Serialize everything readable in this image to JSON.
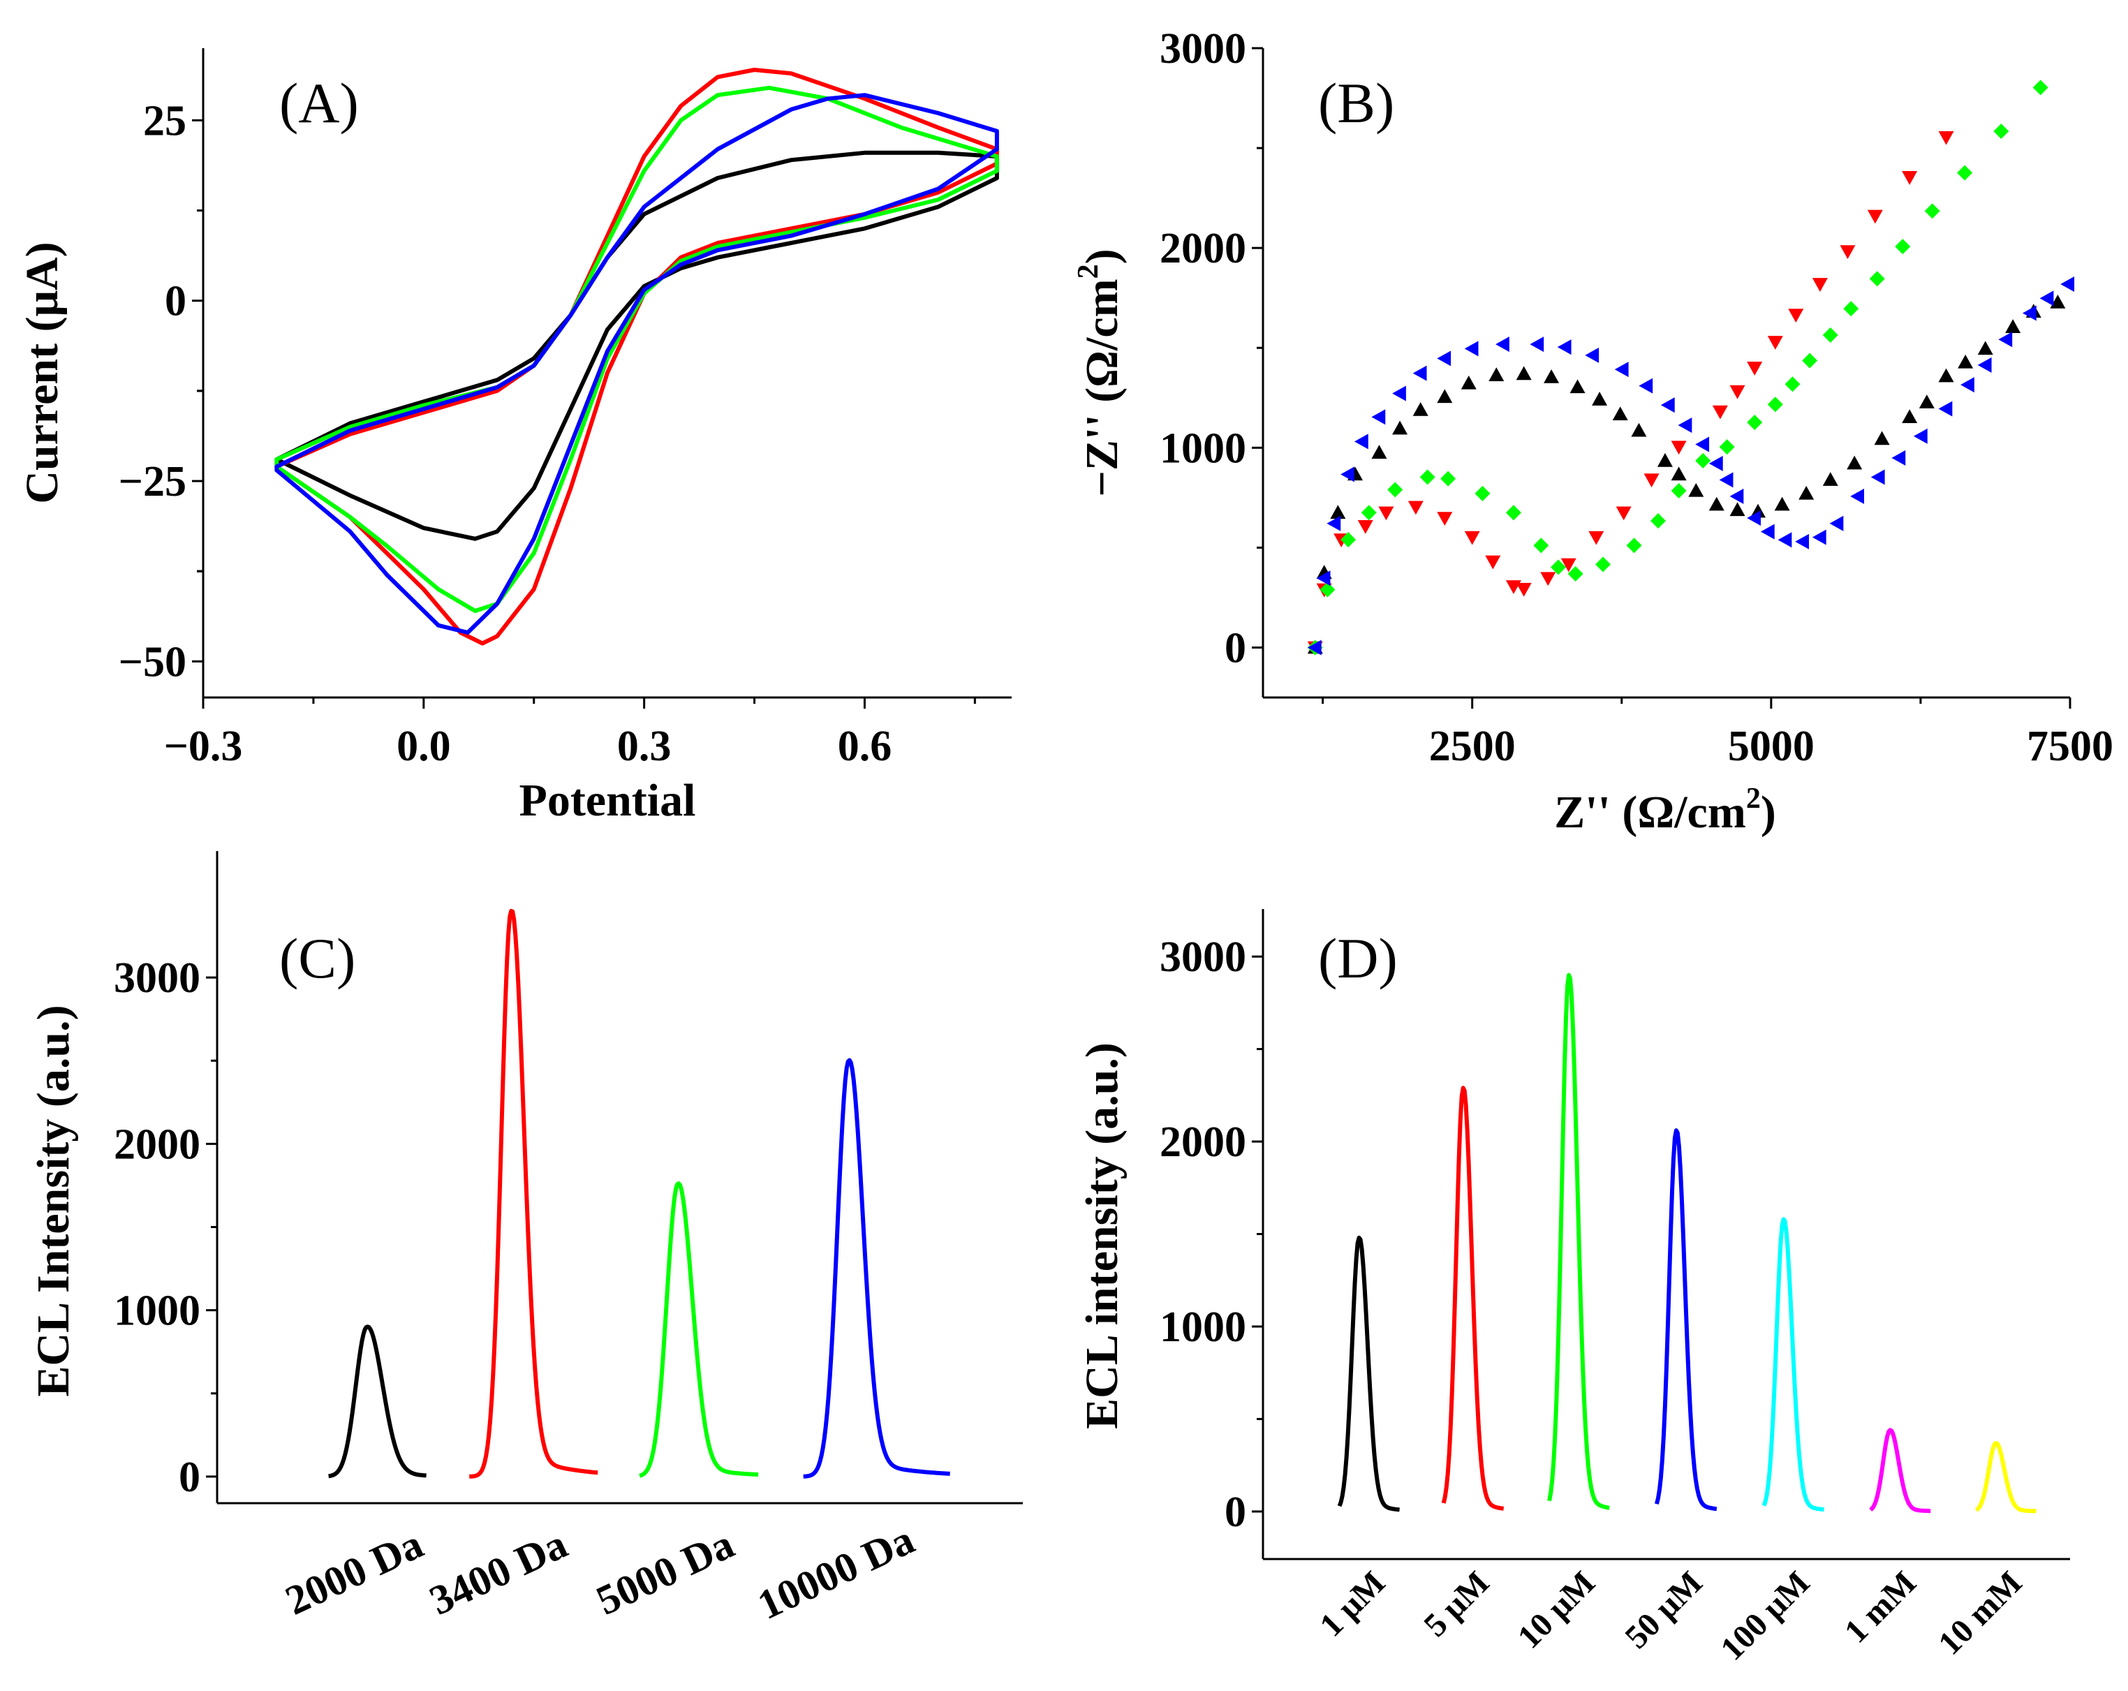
{
  "chart_data": [
    {
      "panel": "(A)",
      "type": "line",
      "xlabel": "Potential",
      "ylabel": "Current (μA)",
      "xlim": [
        -0.3,
        0.8
      ],
      "ylim": [
        -55,
        35
      ],
      "xticks": [
        -0.3,
        0.0,
        0.3,
        0.6
      ],
      "xtick_labels": [
        "−0.3",
        "0.0",
        "0.3",
        "0.6"
      ],
      "yticks": [
        25,
        0,
        -25,
        -50
      ],
      "ytick_labels": [
        "25",
        "0",
        "−25",
        "−50"
      ],
      "grid": false,
      "series": [
        {
          "name": "black",
          "color": "#000000",
          "x": [
            -0.2,
            -0.1,
            0,
            0.1,
            0.15,
            0.2,
            0.25,
            0.3,
            0.4,
            0.5,
            0.6,
            0.7,
            0.78,
            0.78,
            0.7,
            0.6,
            0.5,
            0.4,
            0.35,
            0.3,
            0.25,
            0.2,
            0.15,
            0.1,
            0.07,
            0,
            -0.1,
            -0.2
          ],
          "y": [
            -22,
            -17,
            -14,
            -11,
            -8,
            -2,
            6,
            12,
            17,
            19.5,
            20.5,
            20.5,
            20,
            17,
            13,
            10,
            8,
            6,
            4.5,
            2,
            -4,
            -15,
            -26,
            -32,
            -33,
            -31.5,
            -27,
            -22
          ]
        },
        {
          "name": "red",
          "color": "#ff0000",
          "x": [
            -0.2,
            -0.1,
            0,
            0.1,
            0.15,
            0.2,
            0.25,
            0.3,
            0.35,
            0.4,
            0.45,
            0.5,
            0.6,
            0.7,
            0.78,
            0.78,
            0.7,
            0.6,
            0.5,
            0.4,
            0.35,
            0.3,
            0.25,
            0.2,
            0.15,
            0.1,
            0.08,
            0.05,
            0,
            -0.1,
            -0.2
          ],
          "y": [
            -23,
            -18.5,
            -15.5,
            -12.5,
            -9,
            -2,
            9,
            20,
            27,
            31,
            32,
            31.5,
            28,
            24,
            21,
            19,
            15,
            12,
            10,
            8,
            6,
            1,
            -10,
            -26,
            -40,
            -46.5,
            -47.5,
            -46,
            -40,
            -30,
            -23
          ]
        },
        {
          "name": "green",
          "color": "#00ff00",
          "x": [
            -0.2,
            -0.1,
            0,
            0.1,
            0.15,
            0.2,
            0.25,
            0.3,
            0.35,
            0.4,
            0.47,
            0.55,
            0.65,
            0.78,
            0.78,
            0.7,
            0.6,
            0.5,
            0.4,
            0.35,
            0.3,
            0.25,
            0.2,
            0.15,
            0.1,
            0.07,
            0.02,
            -0.05,
            -0.1,
            -0.2
          ],
          "y": [
            -22,
            -17.5,
            -14.5,
            -12,
            -9,
            -2,
            8,
            18,
            25,
            28.5,
            29.5,
            28,
            24,
            20,
            18,
            14,
            11.5,
            9.5,
            7.5,
            5.5,
            1,
            -8,
            -22,
            -35,
            -42,
            -43,
            -40,
            -34,
            -30,
            -23
          ]
        },
        {
          "name": "blue",
          "color": "#0000ff",
          "x": [
            -0.2,
            -0.1,
            0,
            0.1,
            0.15,
            0.2,
            0.25,
            0.3,
            0.4,
            0.5,
            0.55,
            0.6,
            0.7,
            0.78,
            0.78,
            0.7,
            0.6,
            0.5,
            0.4,
            0.35,
            0.3,
            0.25,
            0.2,
            0.15,
            0.1,
            0.06,
            0.02,
            -0.05,
            -0.1,
            -0.2
          ],
          "y": [
            -23,
            -18,
            -15,
            -12,
            -9,
            -2,
            6,
            13,
            21,
            26.5,
            28,
            28.5,
            26,
            23.5,
            21,
            15.5,
            12,
            9,
            7,
            5,
            1.5,
            -7,
            -20,
            -33,
            -42,
            -46,
            -45,
            -38,
            -32,
            -23.5
          ]
        }
      ]
    },
    {
      "panel": "(B)",
      "type": "scatter",
      "xlabel": "Z'' (Ω/cm",
      "xlabel_sup": "2",
      "xlabel_end": ")",
      "ylabel": "−Z'' (Ω/cm",
      "ylabel_sup": "2",
      "ylabel_end": ")",
      "xlim": [
        750,
        7500
      ],
      "ylim": [
        -250,
        3000
      ],
      "xticks": [
        2500,
        5000,
        7500
      ],
      "xtick_labels": [
        "2500",
        "5000",
        "7500"
      ],
      "yticks": [
        0,
        1000,
        2000,
        3000
      ],
      "ytick_labels": [
        "0",
        "1000",
        "2000",
        "3000"
      ],
      "grid": false,
      "series": [
        {
          "name": "black",
          "color": "#000000",
          "marker": "triangle-up",
          "x": [
            1187,
            1262,
            1377,
            1521,
            1722,
            1895,
            2068,
            2270,
            2471,
            2702,
            2932,
            3162,
            3381,
            3565,
            3738,
            3894,
            4113,
            4228,
            4372,
            4544,
            4718,
            4890,
            5092,
            5294,
            5496,
            5697,
            5927,
            6158,
            6302,
            6464,
            6625,
            6792,
            7022,
            7195,
            7397
          ],
          "y": [
            0,
            375,
            675,
            867,
            976,
            1097,
            1190,
            1255,
            1323,
            1364,
            1370,
            1354,
            1304,
            1242,
            1168,
            1086,
            935,
            867,
            785,
            716,
            689,
            681,
            716,
            771,
            840,
            922,
            1045,
            1154,
            1228,
            1359,
            1428,
            1496,
            1605,
            1682,
            1728
          ]
        },
        {
          "name": "red",
          "color": "#ff0000",
          "marker": "triangle-down",
          "x": [
            1187,
            1262,
            1405,
            1607,
            1780,
            2028,
            2270,
            2500,
            2673,
            2846,
            2932,
            3134,
            3306,
            3537,
            3767,
            4000,
            4228,
            4574,
            4718,
            4862,
            5035,
            5207,
            5409,
            5640,
            5870,
            6158,
            6464
          ],
          "y": [
            0,
            290,
            540,
            607,
            675,
            703,
            648,
            552,
            430,
            306,
            293,
            347,
            416,
            552,
            675,
            840,
            1004,
            1181,
            1282,
            1400,
            1529,
            1665,
            1819,
            1983,
            2160,
            2354,
            2554
          ]
        },
        {
          "name": "green",
          "color": "#00ff00",
          "marker": "diamond",
          "x": [
            1187,
            1290,
            1463,
            1636,
            1855,
            2126,
            2298,
            2586,
            2846,
            3076,
            3220,
            3364,
            3594,
            3854,
            4055,
            4228,
            4430,
            4631,
            4862,
            5035,
            5179,
            5323,
            5496,
            5668,
            5887,
            6100,
            6348,
            6619,
            6924,
            7253
          ],
          "y": [
            0,
            290,
            540,
            675,
            790,
            853,
            845,
            771,
            675,
            511,
            402,
            369,
            416,
            511,
            634,
            785,
            935,
            1004,
            1127,
            1217,
            1318,
            1436,
            1564,
            1696,
            1846,
            2007,
            2185,
            2376,
            2584,
            2803
          ]
        },
        {
          "name": "blue",
          "color": "#0000ff",
          "marker": "triangle-left",
          "x": [
            1187,
            1262,
            1348,
            1463,
            1579,
            1722,
            1895,
            2068,
            2270,
            2500,
            2759,
            3047,
            3277,
            3508,
            3756,
            3958,
            4142,
            4286,
            4430,
            4545,
            4631,
            4718,
            4862,
            4977,
            5121,
            5265,
            5409,
            5553,
            5726,
            5899,
            6072,
            6256,
            6464,
            6648,
            6792,
            6965,
            7167,
            7311,
            7484
          ],
          "y": [
            0,
            347,
            621,
            867,
            1031,
            1154,
            1272,
            1373,
            1447,
            1496,
            1518,
            1518,
            1504,
            1463,
            1392,
            1310,
            1214,
            1113,
            1017,
            921,
            839,
            757,
            648,
            580,
            539,
            530,
            552,
            621,
            757,
            853,
            949,
            1058,
            1195,
            1315,
            1414,
            1542,
            1674,
            1748,
            1819
          ]
        }
      ]
    },
    {
      "panel": "(C)",
      "type": "line",
      "xlabel": "",
      "ylabel": "ECL Intensity (a.u.)",
      "ylim": [
        -160,
        3760
      ],
      "yticks": [
        0,
        1000,
        2000,
        3000
      ],
      "ytick_labels": [
        "0",
        "1000",
        "2000",
        "3000"
      ],
      "categories": [
        "2000 Da",
        "3400 Da",
        "5000 Da",
        "10000 Da"
      ],
      "values": [
        900,
        3400,
        1760,
        2500
      ],
      "colors": [
        "#000000",
        "#ff0000",
        "#00ff00",
        "#0000ff"
      ],
      "grid": false
    },
    {
      "panel": "(D)",
      "type": "line",
      "xlabel": "",
      "ylabel": "ECL intensity (a.u.)",
      "ylim": [
        -257,
        3257
      ],
      "yticks": [
        0,
        1000,
        2000,
        3000
      ],
      "ytick_labels": [
        "0",
        "1000",
        "2000",
        "3000"
      ],
      "categories": [
        "1 μM",
        "5 μM",
        "10 μM",
        "50 μM",
        "100 μM",
        "1 mM",
        "10 mM"
      ],
      "values": [
        1480,
        2290,
        2900,
        2060,
        1580,
        440,
        370
      ],
      "colors": [
        "#000000",
        "#ff0000",
        "#00ff00",
        "#0000ff",
        "#00ffff",
        "#ff00ff",
        "#ffff00"
      ],
      "grid": false
    }
  ]
}
